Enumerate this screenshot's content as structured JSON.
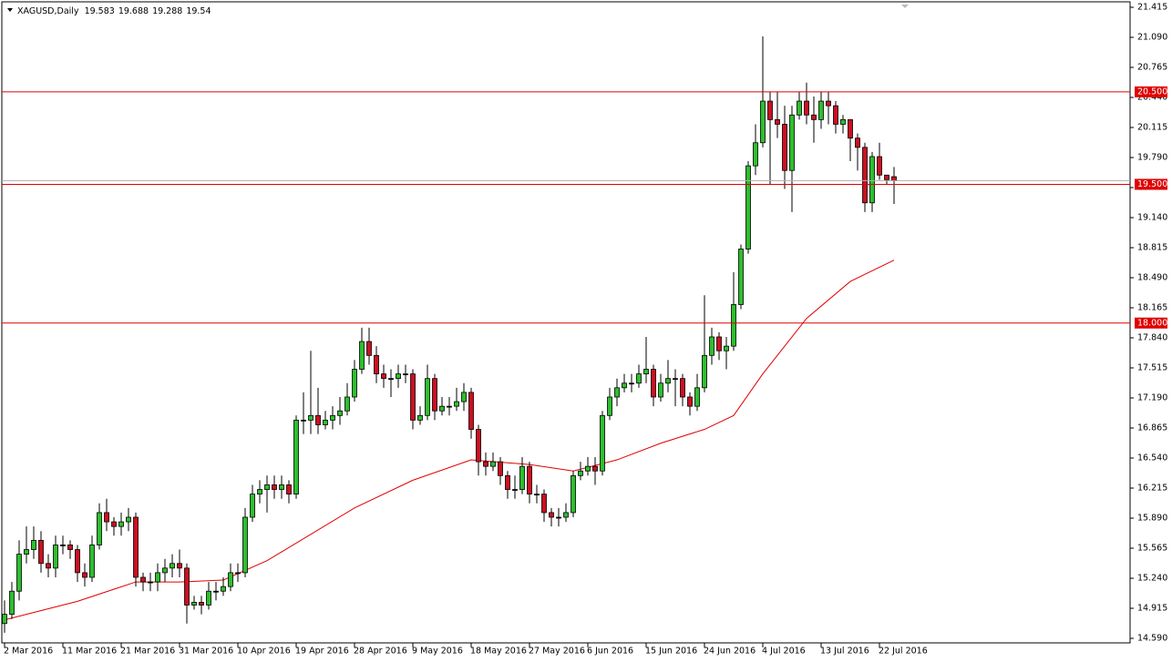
{
  "chart_data": {
    "type": "candlestick",
    "title": "XAGUSD,Daily",
    "categories": [
      "2 Mar 2016",
      null,
      null,
      null,
      null,
      null,
      null,
      null,
      "11 Mar 2016",
      null,
      null,
      null,
      null,
      null,
      null,
      null,
      "21 Mar 2016",
      null,
      null,
      null,
      null,
      null,
      null,
      null,
      "31 Mar 2016",
      null,
      null,
      null,
      null,
      null,
      null,
      null,
      "10 Apr 2016",
      null,
      null,
      null,
      null,
      null,
      null,
      null,
      "19 Apr 2016",
      null,
      null,
      null,
      null,
      null,
      null,
      null,
      "28 Apr 2016",
      null,
      null,
      null,
      null,
      null,
      null,
      null,
      "9 May 2016",
      null,
      null,
      null,
      null,
      null,
      null,
      null,
      "18 May 2016",
      null,
      null,
      null,
      null,
      null,
      null,
      null,
      "27 May 2016",
      null,
      null,
      null,
      null,
      null,
      null,
      null,
      "6 Jun 2016",
      null,
      null,
      null,
      null,
      null,
      null,
      null,
      "15 Jun 2016",
      null,
      null,
      null,
      null,
      null,
      null,
      null,
      "24 Jun 2016",
      null,
      null,
      null,
      null,
      null,
      null,
      null,
      "4 Jul 2016",
      null,
      null,
      null,
      null,
      null,
      null,
      null,
      "13 Jul 2016",
      null,
      null,
      null,
      null,
      null,
      null,
      null,
      "22 Jul 2016",
      null,
      null
    ],
    "open": [
      14.75,
      14.85,
      15.1,
      15.5,
      15.55,
      15.65,
      15.4,
      15.35,
      15.6,
      15.6,
      15.55,
      15.3,
      15.25,
      15.6,
      15.95,
      15.85,
      15.8,
      15.85,
      15.9,
      15.25,
      15.2,
      15.2,
      15.3,
      15.35,
      15.4,
      15.35,
      14.95,
      14.98,
      14.95,
      15.1,
      15.1,
      15.15,
      15.3,
      15.3,
      15.9,
      16.15,
      16.2,
      16.25,
      16.2,
      16.25,
      16.15,
      16.95,
      16.95,
      17.0,
      16.9,
      16.95,
      17.0,
      17.05,
      17.2,
      17.5,
      17.8,
      17.65,
      17.45,
      17.4,
      17.4,
      17.45,
      17.45,
      16.95,
      17.0,
      17.4,
      17.05,
      17.1,
      17.1,
      17.15,
      17.25,
      16.85,
      16.5,
      16.45,
      16.5,
      16.35,
      16.2,
      16.2,
      16.45,
      16.15,
      16.15,
      15.95,
      15.9,
      15.9,
      15.95,
      16.35,
      16.4,
      16.45,
      16.4,
      17.0,
      17.2,
      17.3,
      17.35,
      17.35,
      17.45,
      17.5,
      17.2,
      17.35,
      17.4,
      17.4,
      17.2,
      17.1,
      17.3,
      17.65,
      17.85,
      17.7,
      17.75,
      18.2,
      18.8,
      19.7,
      19.95,
      20.4,
      20.2,
      20.15,
      19.65,
      20.25,
      20.4,
      20.25,
      20.2,
      20.4,
      20.35,
      20.15,
      20.2,
      20.0,
      19.9,
      19.3,
      19.8,
      19.6,
      19.583
    ],
    "high": [
      15.0,
      15.2,
      15.65,
      15.8,
      15.8,
      15.75,
      15.5,
      15.7,
      15.7,
      15.65,
      15.6,
      15.4,
      15.7,
      16.05,
      16.1,
      15.9,
      15.95,
      16.0,
      15.95,
      15.3,
      15.3,
      15.4,
      15.45,
      15.5,
      15.55,
      15.4,
      15.05,
      15.05,
      15.2,
      15.2,
      15.25,
      15.4,
      15.4,
      16.0,
      16.25,
      16.3,
      16.35,
      16.35,
      16.35,
      16.3,
      17.0,
      17.25,
      17.7,
      17.3,
      17.05,
      17.1,
      17.2,
      17.35,
      17.6,
      17.95,
      17.95,
      17.75,
      17.55,
      17.5,
      17.55,
      17.55,
      17.5,
      17.1,
      17.55,
      17.45,
      17.2,
      17.2,
      17.3,
      17.35,
      17.3,
      16.9,
      16.6,
      16.6,
      16.55,
      16.4,
      16.35,
      16.55,
      16.5,
      16.25,
      16.2,
      16.0,
      16.0,
      16.05,
      16.4,
      16.5,
      16.55,
      16.55,
      17.05,
      17.3,
      17.4,
      17.45,
      17.45,
      17.55,
      17.85,
      17.55,
      17.45,
      17.6,
      17.5,
      17.45,
      17.25,
      17.45,
      18.3,
      17.95,
      17.9,
      17.85,
      18.55,
      18.85,
      19.75,
      20.15,
      21.1,
      20.5,
      20.5,
      20.35,
      20.35,
      20.5,
      20.6,
      20.45,
      20.5,
      20.5,
      20.4,
      20.25,
      20.2,
      20.05,
      19.95,
      19.85,
      19.95,
      19.6,
      19.688
    ],
    "low": [
      14.65,
      14.8,
      15.0,
      15.4,
      15.45,
      15.3,
      15.25,
      15.25,
      15.5,
      15.45,
      15.2,
      15.15,
      15.2,
      15.55,
      15.75,
      15.7,
      15.7,
      15.75,
      15.15,
      15.1,
      15.1,
      15.1,
      15.2,
      15.25,
      15.25,
      14.75,
      14.9,
      14.85,
      14.9,
      15.0,
      15.05,
      15.1,
      15.2,
      15.25,
      15.85,
      16.05,
      15.95,
      16.1,
      16.1,
      16.05,
      16.1,
      16.8,
      16.8,
      16.8,
      16.85,
      16.85,
      16.9,
      17.0,
      17.15,
      17.45,
      17.55,
      17.35,
      17.3,
      17.2,
      17.3,
      17.35,
      16.85,
      16.9,
      16.95,
      16.95,
      17.0,
      17.0,
      17.05,
      17.05,
      16.75,
      16.35,
      16.35,
      16.4,
      16.25,
      16.1,
      16.1,
      16.15,
      16.05,
      16.05,
      15.85,
      15.8,
      15.8,
      15.85,
      15.9,
      16.3,
      16.35,
      16.25,
      16.35,
      16.95,
      17.1,
      17.25,
      17.25,
      17.3,
      17.35,
      17.1,
      17.15,
      17.25,
      17.1,
      17.1,
      17.0,
      17.05,
      17.25,
      17.55,
      17.6,
      17.5,
      17.7,
      18.15,
      18.75,
      19.6,
      19.9,
      19.5,
      20.0,
      19.45,
      19.2,
      20.2,
      20.15,
      19.95,
      20.1,
      20.15,
      20.05,
      20.05,
      19.75,
      19.65,
      19.2,
      19.2,
      19.55,
      19.5,
      19.288
    ],
    "close": [
      14.85,
      15.1,
      15.5,
      15.55,
      15.65,
      15.4,
      15.35,
      15.6,
      15.6,
      15.55,
      15.3,
      15.25,
      15.6,
      15.95,
      15.85,
      15.8,
      15.85,
      15.9,
      15.25,
      15.2,
      15.2,
      15.3,
      15.35,
      15.4,
      15.35,
      14.95,
      14.98,
      14.95,
      15.1,
      15.1,
      15.15,
      15.3,
      15.3,
      15.9,
      16.15,
      16.2,
      16.25,
      16.2,
      16.25,
      16.15,
      16.95,
      16.95,
      17.0,
      16.9,
      16.95,
      17.0,
      17.05,
      17.2,
      17.5,
      17.8,
      17.65,
      17.45,
      17.4,
      17.4,
      17.45,
      17.45,
      16.95,
      17.0,
      17.4,
      17.05,
      17.1,
      17.1,
      17.15,
      17.25,
      16.85,
      16.5,
      16.45,
      16.5,
      16.35,
      16.2,
      16.2,
      16.45,
      16.15,
      16.15,
      15.95,
      15.9,
      15.9,
      15.95,
      16.35,
      16.4,
      16.45,
      16.4,
      17.0,
      17.2,
      17.3,
      17.35,
      17.35,
      17.45,
      17.5,
      17.2,
      17.35,
      17.4,
      17.4,
      17.2,
      17.1,
      17.3,
      17.65,
      17.85,
      17.7,
      17.75,
      18.2,
      18.8,
      19.7,
      19.95,
      20.4,
      20.2,
      20.15,
      19.65,
      20.25,
      20.4,
      20.25,
      20.2,
      20.4,
      20.35,
      20.15,
      20.2,
      20.0,
      19.9,
      19.3,
      19.8,
      19.6,
      19.55,
      19.54
    ],
    "up_color": "#2dbf2d",
    "down_color": "#cc1021",
    "ma": {
      "x": [
        0,
        10,
        18,
        24,
        30,
        36,
        40,
        48,
        56,
        64,
        72,
        78,
        84,
        90,
        96,
        100,
        104,
        110,
        116,
        122
      ],
      "values": [
        14.79,
        14.99,
        15.2,
        15.2,
        15.22,
        15.43,
        15.62,
        16.0,
        16.3,
        16.52,
        16.47,
        16.4,
        16.52,
        16.7,
        16.85,
        17.0,
        17.45,
        18.05,
        18.45,
        18.68
      ],
      "color": "#e00000"
    },
    "hlines": [
      {
        "value": 20.5,
        "label": "20.500"
      },
      {
        "value": 19.5,
        "label": "19.500"
      },
      {
        "value": 18.0,
        "label": "18.000"
      }
    ],
    "hline_color": "#e00000",
    "close_line_color": "#b0b0b0",
    "ylim": [
      14.541,
      21.474
    ],
    "yticks": [
      21.415,
      {
        "value": 21.09,
        "label": "21.090"
      },
      20.765,
      {
        "value": 20.44,
        "label": "20.440"
      },
      20.115,
      {
        "value": 19.79,
        "label": "19.790"
      },
      19.465,
      {
        "value": 19.14,
        "label": "19.140"
      },
      18.815,
      {
        "value": 18.49,
        "label": "18.490"
      },
      18.165,
      {
        "value": 17.84,
        "label": "17.840"
      },
      17.515,
      {
        "value": 17.19,
        "label": "17.190"
      },
      16.865,
      {
        "value": 16.54,
        "label": "16.540"
      },
      16.215,
      {
        "value": 15.89,
        "label": "15.890"
      },
      15.565,
      {
        "value": 15.24,
        "label": "15.240"
      },
      14.915,
      {
        "value": 14.59,
        "label": "14.590"
      }
    ]
  }
}
